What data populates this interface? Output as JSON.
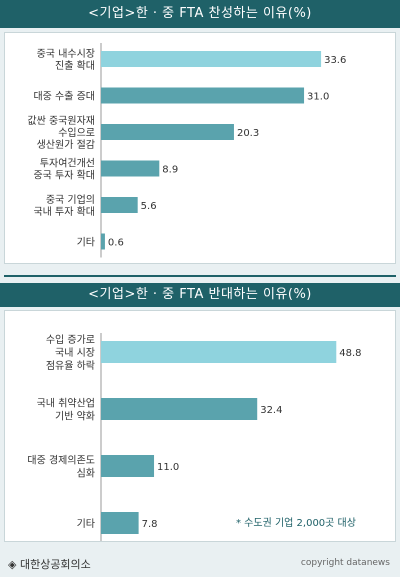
{
  "chart_data": [
    {
      "type": "bar",
      "orientation": "horizontal",
      "title": "<기업>한 · 중 FTA 찬성하는 이유(%)",
      "categories": [
        [
          "중국 내수시장",
          "진출 확대"
        ],
        [
          "대중 수출 증대"
        ],
        [
          "값싼 중국원자재",
          "수입으로",
          "생산원가 절감"
        ],
        [
          "투자여건개선",
          "중국 투자 확대"
        ],
        [
          "중국 기업의",
          "국내 투자 확대"
        ],
        [
          "기타"
        ]
      ],
      "values": [
        33.6,
        31.0,
        20.3,
        8.9,
        5.6,
        0.6
      ],
      "value_labels": [
        "33.6",
        "31.0",
        "20.3",
        "8.9",
        "5.6",
        "0.6"
      ],
      "xlim": [
        0,
        40
      ],
      "grid": false,
      "highlight_index": 0
    },
    {
      "type": "bar",
      "orientation": "horizontal",
      "title": "<기업>한 · 중 FTA 반대하는 이유(%)",
      "categories": [
        [
          "수입 증가로",
          "국내 시장",
          "점유율 하락"
        ],
        [
          "국내 취약산업",
          "기반 약화"
        ],
        [
          "대중 경제의존도",
          "심화"
        ],
        [
          "기타"
        ]
      ],
      "values": [
        48.8,
        32.4,
        11.0,
        7.8
      ],
      "value_labels": [
        "48.8",
        "32.4",
        "11.0",
        "7.8"
      ],
      "xlim": [
        0,
        56
      ],
      "grid": false,
      "highlight_index": 0
    }
  ],
  "note": "* 수도권 기업 2,000곳 대상",
  "source": "◈ 대한상공회의소",
  "copyright": "copyright datanews",
  "colors": {
    "highlight_bar": "#8fd3de",
    "bar": "#5aa3ad",
    "title_bg": "#1f6168",
    "page_bg": "#e9f0f2"
  }
}
